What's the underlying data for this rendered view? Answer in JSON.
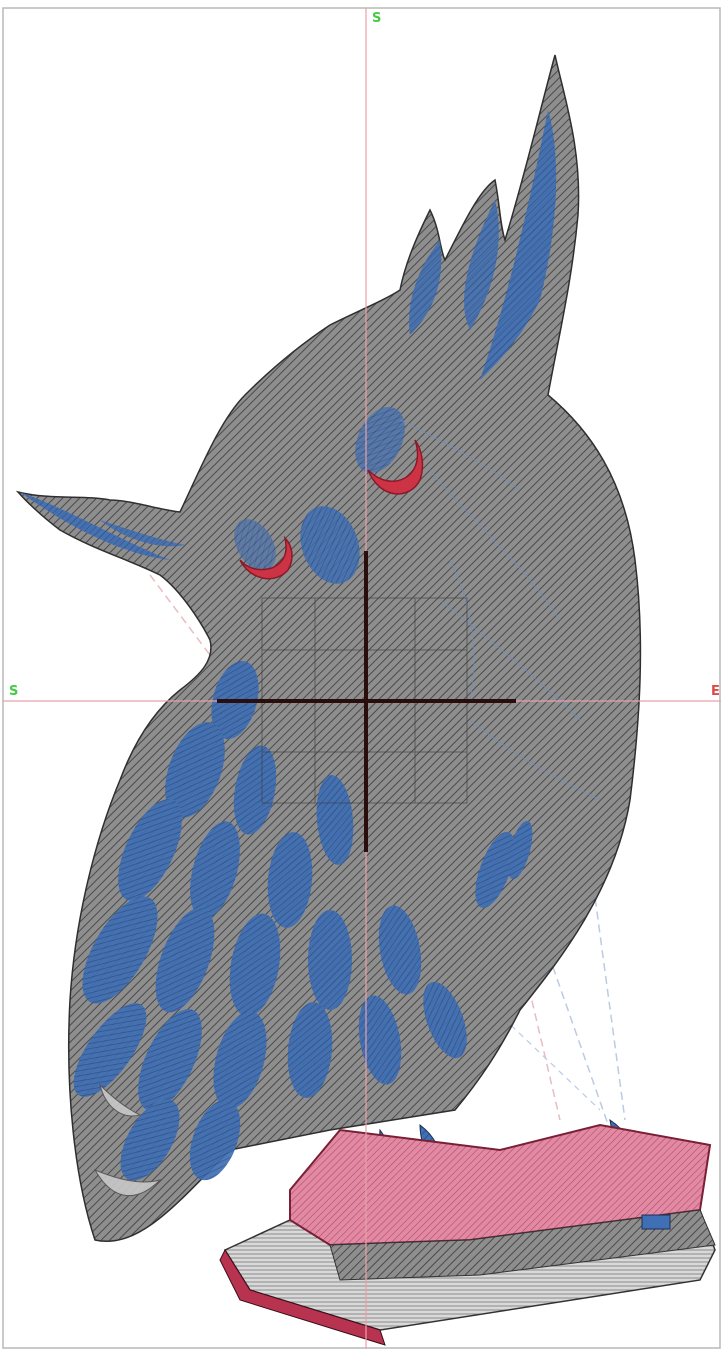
{
  "canvas": {
    "axis_labels": {
      "top": "S",
      "left": "S",
      "right": "E"
    },
    "colors": {
      "background": "#ffffff",
      "frame": "#b8b8b8",
      "axis_line": "#e8a0a8",
      "start_label": "#44cc44",
      "end_label": "#e04848",
      "body_fill": "#8e8e8e",
      "hatch_stitch": "#4a4a4a",
      "feather_blue": "#3f6fb5",
      "book_pink": "#d86a8a",
      "book_crimson": "#b8334f",
      "eye_red": "#cc3344",
      "page_white": "#e6e6e6",
      "crosshair": "#2a0e0e"
    },
    "icons": [
      "owl-embroidery-design",
      "center-crosshair-icon"
    ]
  }
}
